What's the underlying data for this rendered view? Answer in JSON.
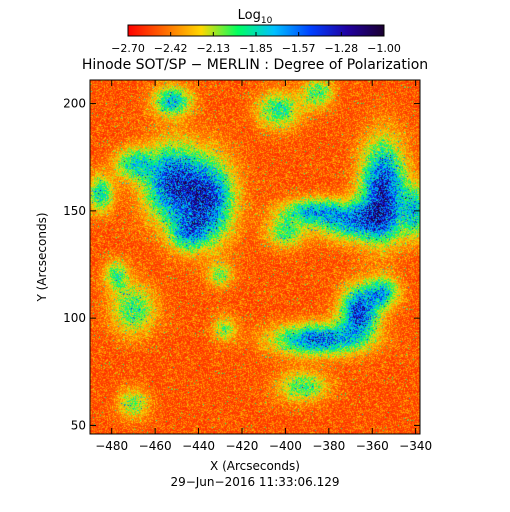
{
  "chart_data": {
    "type": "heatmap",
    "title": "Hinode SOT/SP − MERLIN : Degree of Polarization",
    "colorbar": {
      "label_base": "Log",
      "label_sub": "10",
      "ticks": [
        "−2.70",
        "−2.42",
        "−2.13",
        "−1.85",
        "−1.57",
        "−1.28",
        "−1.00"
      ],
      "range": [
        -2.7,
        -1.0
      ],
      "colormap": [
        "#ff0000",
        "#ff6a00",
        "#ffd800",
        "#00ff60",
        "#00c0ff",
        "#0040ff",
        "#2000a0",
        "#1a0030"
      ]
    },
    "xlabel": "X (Arcseconds)",
    "ylabel": "Y (Arcseconds)",
    "xlim": [
      -490,
      -338
    ],
    "ylim": [
      46,
      211
    ],
    "xticks": [
      -480,
      -460,
      -440,
      -420,
      -400,
      -380,
      -360,
      -340
    ],
    "xtick_labels": [
      "−480",
      "−460",
      "−440",
      "−420",
      "−400",
      "−380",
      "−360",
      "−340"
    ],
    "yticks": [
      50,
      100,
      150,
      200
    ],
    "ytick_labels": [
      "50",
      "100",
      "150",
      "200"
    ],
    "grid": false,
    "blobs": [
      {
        "x": -452,
        "y": 163,
        "sx": 9,
        "sy": 12,
        "a": 0.72
      },
      {
        "x": -470,
        "y": 172,
        "sx": 6,
        "sy": 5,
        "a": 0.4
      },
      {
        "x": -435,
        "y": 155,
        "sx": 8,
        "sy": 13,
        "a": 0.68
      },
      {
        "x": -445,
        "y": 140,
        "sx": 6,
        "sy": 6,
        "a": 0.45
      },
      {
        "x": -452,
        "y": 201,
        "sx": 6,
        "sy": 5,
        "a": 0.5
      },
      {
        "x": -403,
        "y": 197,
        "sx": 7,
        "sy": 6,
        "a": 0.4
      },
      {
        "x": -385,
        "y": 205,
        "sx": 5,
        "sy": 5,
        "a": 0.35
      },
      {
        "x": -355,
        "y": 160,
        "sx": 7,
        "sy": 15,
        "a": 0.78
      },
      {
        "x": -368,
        "y": 145,
        "sx": 12,
        "sy": 6,
        "a": 0.55
      },
      {
        "x": -388,
        "y": 150,
        "sx": 10,
        "sy": 4,
        "a": 0.45
      },
      {
        "x": -400,
        "y": 140,
        "sx": 6,
        "sy": 5,
        "a": 0.35
      },
      {
        "x": -385,
        "y": 90,
        "sx": 14,
        "sy": 5,
        "a": 0.65
      },
      {
        "x": -366,
        "y": 103,
        "sx": 6,
        "sy": 8,
        "a": 0.72
      },
      {
        "x": -355,
        "y": 112,
        "sx": 5,
        "sy": 5,
        "a": 0.5
      },
      {
        "x": -392,
        "y": 68,
        "sx": 8,
        "sy": 5,
        "a": 0.35
      },
      {
        "x": -470,
        "y": 104,
        "sx": 7,
        "sy": 8,
        "a": 0.38
      },
      {
        "x": -478,
        "y": 120,
        "sx": 4,
        "sy": 5,
        "a": 0.35
      },
      {
        "x": -428,
        "y": 95,
        "sx": 4,
        "sy": 4,
        "a": 0.3
      },
      {
        "x": -470,
        "y": 60,
        "sx": 5,
        "sy": 5,
        "a": 0.3
      },
      {
        "x": -485,
        "y": 158,
        "sx": 4,
        "sy": 6,
        "a": 0.45
      },
      {
        "x": -430,
        "y": 120,
        "sx": 4,
        "sy": 4,
        "a": 0.3
      },
      {
        "x": -340,
        "y": 150,
        "sx": 4,
        "sy": 8,
        "a": 0.45
      }
    ]
  },
  "timestamp": "29−Jun−2016 11:33:06.129"
}
